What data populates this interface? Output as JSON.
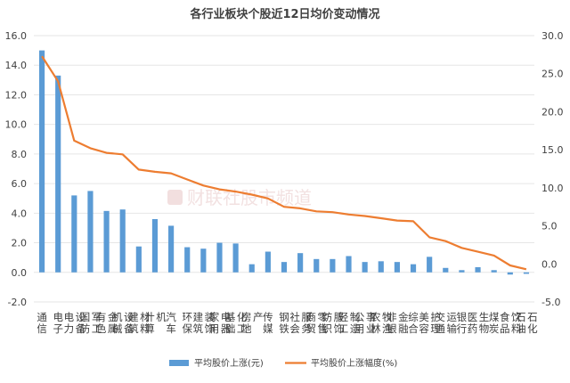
{
  "chart_data": {
    "type": "bar+line",
    "title": "各行业板块个股近12日均价变动情况",
    "categories": [
      "通信",
      "电子",
      "电力设备",
      "国防军工",
      "有色金属",
      "机械设备",
      "建筑材料",
      "计算机",
      "汽车",
      "环保",
      "建筑装饰",
      "家用电器",
      "基础化工",
      "房地产",
      "传媒",
      "钢铁",
      "社会服务",
      "商贸零售",
      "纺织服饰",
      "轻工制造",
      "公用事业",
      "农林牧渔",
      "非银金融",
      "综合",
      "美容护理",
      "交通运输",
      "银行",
      "医药生物",
      "煤炭",
      "食品饮料",
      "石油石化"
    ],
    "series": [
      {
        "name": "平均股价上涨(元)",
        "type": "bar",
        "axis": "left",
        "color": "#5b9bd5",
        "values": [
          15.0,
          13.3,
          5.2,
          5.5,
          4.15,
          4.25,
          1.75,
          3.6,
          3.15,
          1.7,
          1.6,
          2.0,
          1.95,
          0.55,
          1.4,
          0.7,
          1.3,
          0.9,
          0.9,
          1.1,
          0.7,
          0.75,
          0.7,
          0.55,
          1.05,
          0.3,
          0.15,
          0.35,
          0.15,
          -0.15,
          -0.1
        ]
      },
      {
        "name": "平均股价上涨幅度(%)",
        "type": "line",
        "axis": "right",
        "color": "#ed7d31",
        "values": [
          27.3,
          24.0,
          16.2,
          15.2,
          14.6,
          14.4,
          12.4,
          12.1,
          11.9,
          11.1,
          10.3,
          9.8,
          9.5,
          9.1,
          8.6,
          7.5,
          7.3,
          6.9,
          6.8,
          6.5,
          6.3,
          6.0,
          5.7,
          5.6,
          3.5,
          3.0,
          2.1,
          1.6,
          1.1,
          -0.2,
          -0.7
        ]
      }
    ],
    "y_left": {
      "min": -2.0,
      "max": 16.0,
      "step": 2.0,
      "tick_labels": [
        "-2.0",
        "0.0",
        "2.0",
        "4.0",
        "6.0",
        "8.0",
        "10.0",
        "12.0",
        "14.0",
        "16.0"
      ]
    },
    "y_right": {
      "min": -5.0,
      "max": 30.0,
      "step": 5.0,
      "tick_labels": [
        "-5.0",
        "0.0",
        "5.0",
        "10.0",
        "15.0",
        "20.0",
        "25.0",
        "30.0"
      ]
    },
    "grid": true,
    "legend_position": "bottom"
  },
  "watermark": "财联社股市频道"
}
